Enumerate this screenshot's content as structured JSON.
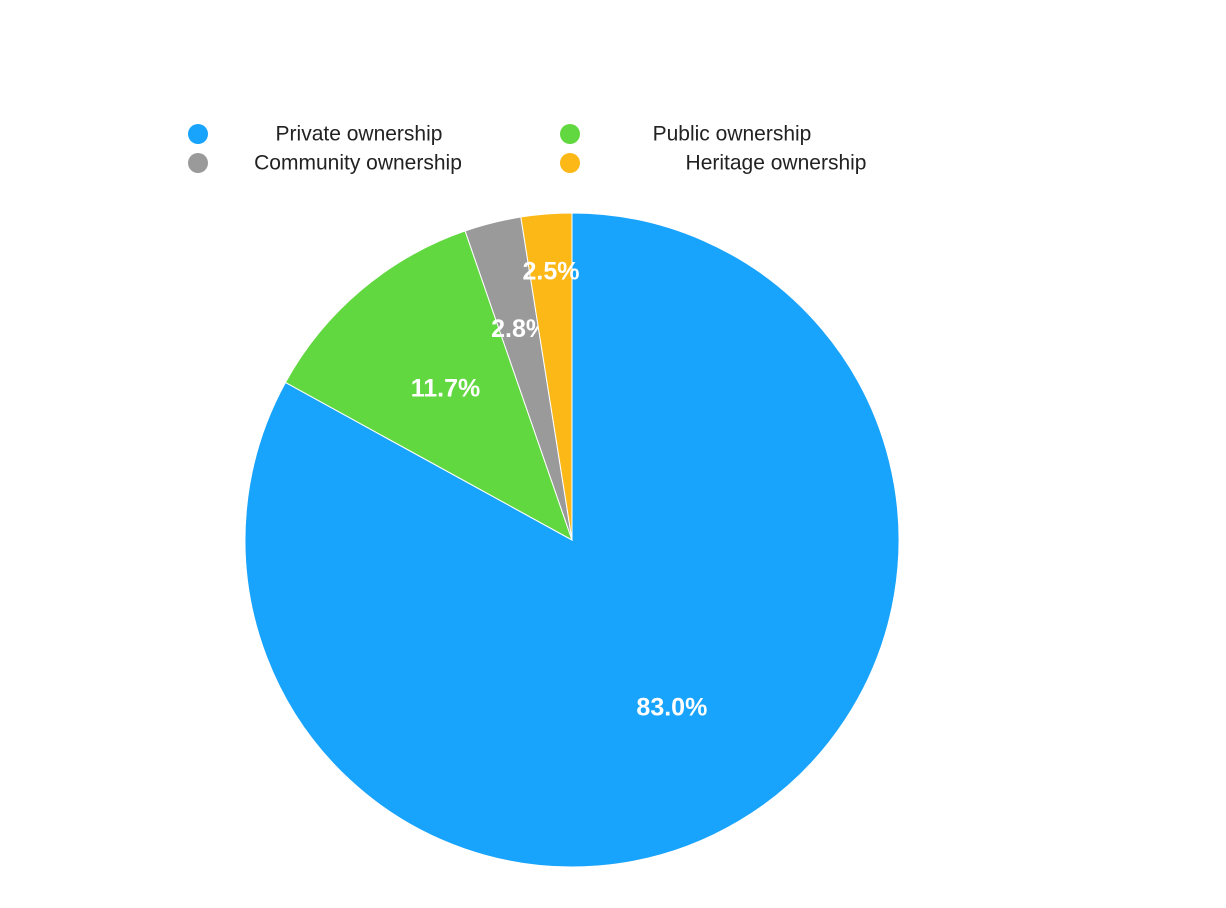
{
  "chart_data": {
    "type": "pie",
    "categories": [
      "Private ownership",
      "Public ownership",
      "Community ownership",
      "Heritage ownership"
    ],
    "values": [
      83.0,
      11.7,
      2.8,
      2.5
    ],
    "value_labels": [
      "83.0%",
      "11.7%",
      "2.8%",
      "2.5%"
    ],
    "colors": [
      "#18a3fd",
      "#62d840",
      "#9a9a9a",
      "#fbb817"
    ],
    "start_angle": 90,
    "direction": "clockwise",
    "legend": "top"
  }
}
